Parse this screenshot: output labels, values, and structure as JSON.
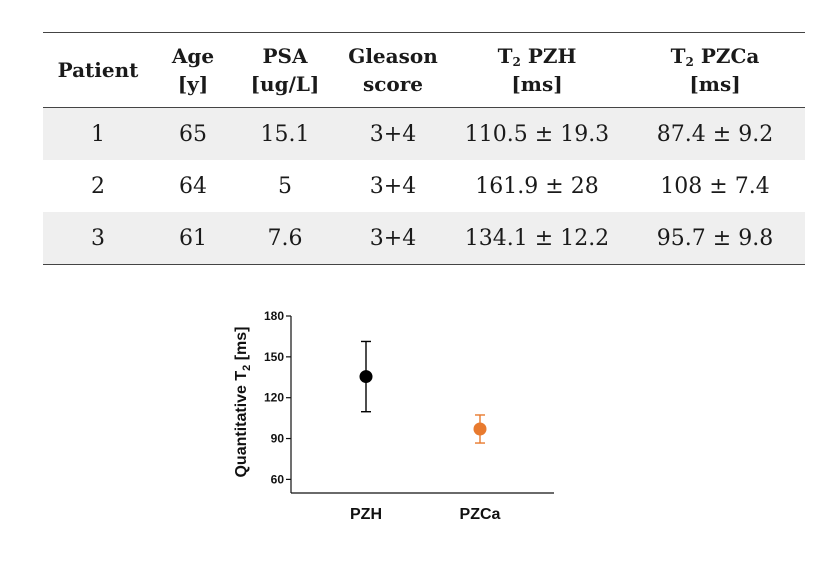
{
  "table": {
    "headers": [
      {
        "line1": "Patient",
        "line2": ""
      },
      {
        "line1": "Age",
        "line2": "[y]"
      },
      {
        "line1": "PSA",
        "line2": "[ug/L]"
      },
      {
        "line1": "Gleason",
        "line2": "score"
      },
      {
        "line1_prefix": "T",
        "line1_sub": "2",
        "line1_suffix": " PZH",
        "line2": "[ms]"
      },
      {
        "line1_prefix": "T",
        "line1_sub": "2",
        "line1_suffix": " PZCa",
        "line2": "[ms]"
      }
    ],
    "rows": [
      [
        "1",
        "65",
        "15.1",
        "3+4",
        "110.5 ± 19.3",
        "87.4 ± 9.2"
      ],
      [
        "2",
        "64",
        "5",
        "3+4",
        "161.9 ± 28",
        "108 ± 7.4"
      ],
      [
        "3",
        "61",
        "7.6",
        "3+4",
        "134.1 ± 12.2",
        "95.7 ± 9.8"
      ]
    ]
  },
  "chart_data": {
    "type": "scatter",
    "categories": [
      "PZH",
      "PZCa"
    ],
    "series": [
      {
        "values": [
          135.5,
          97
        ],
        "errors": [
          25.8,
          10.3
        ],
        "colors": [
          "#000000",
          "#e87a2e"
        ]
      }
    ],
    "ylabel_prefix": "Quantitative T",
    "ylabel_sub": "2",
    "ylabel_suffix": " [ms]",
    "ylim": [
      50,
      180
    ],
    "yticks": [
      60,
      90,
      120,
      150,
      180
    ]
  }
}
